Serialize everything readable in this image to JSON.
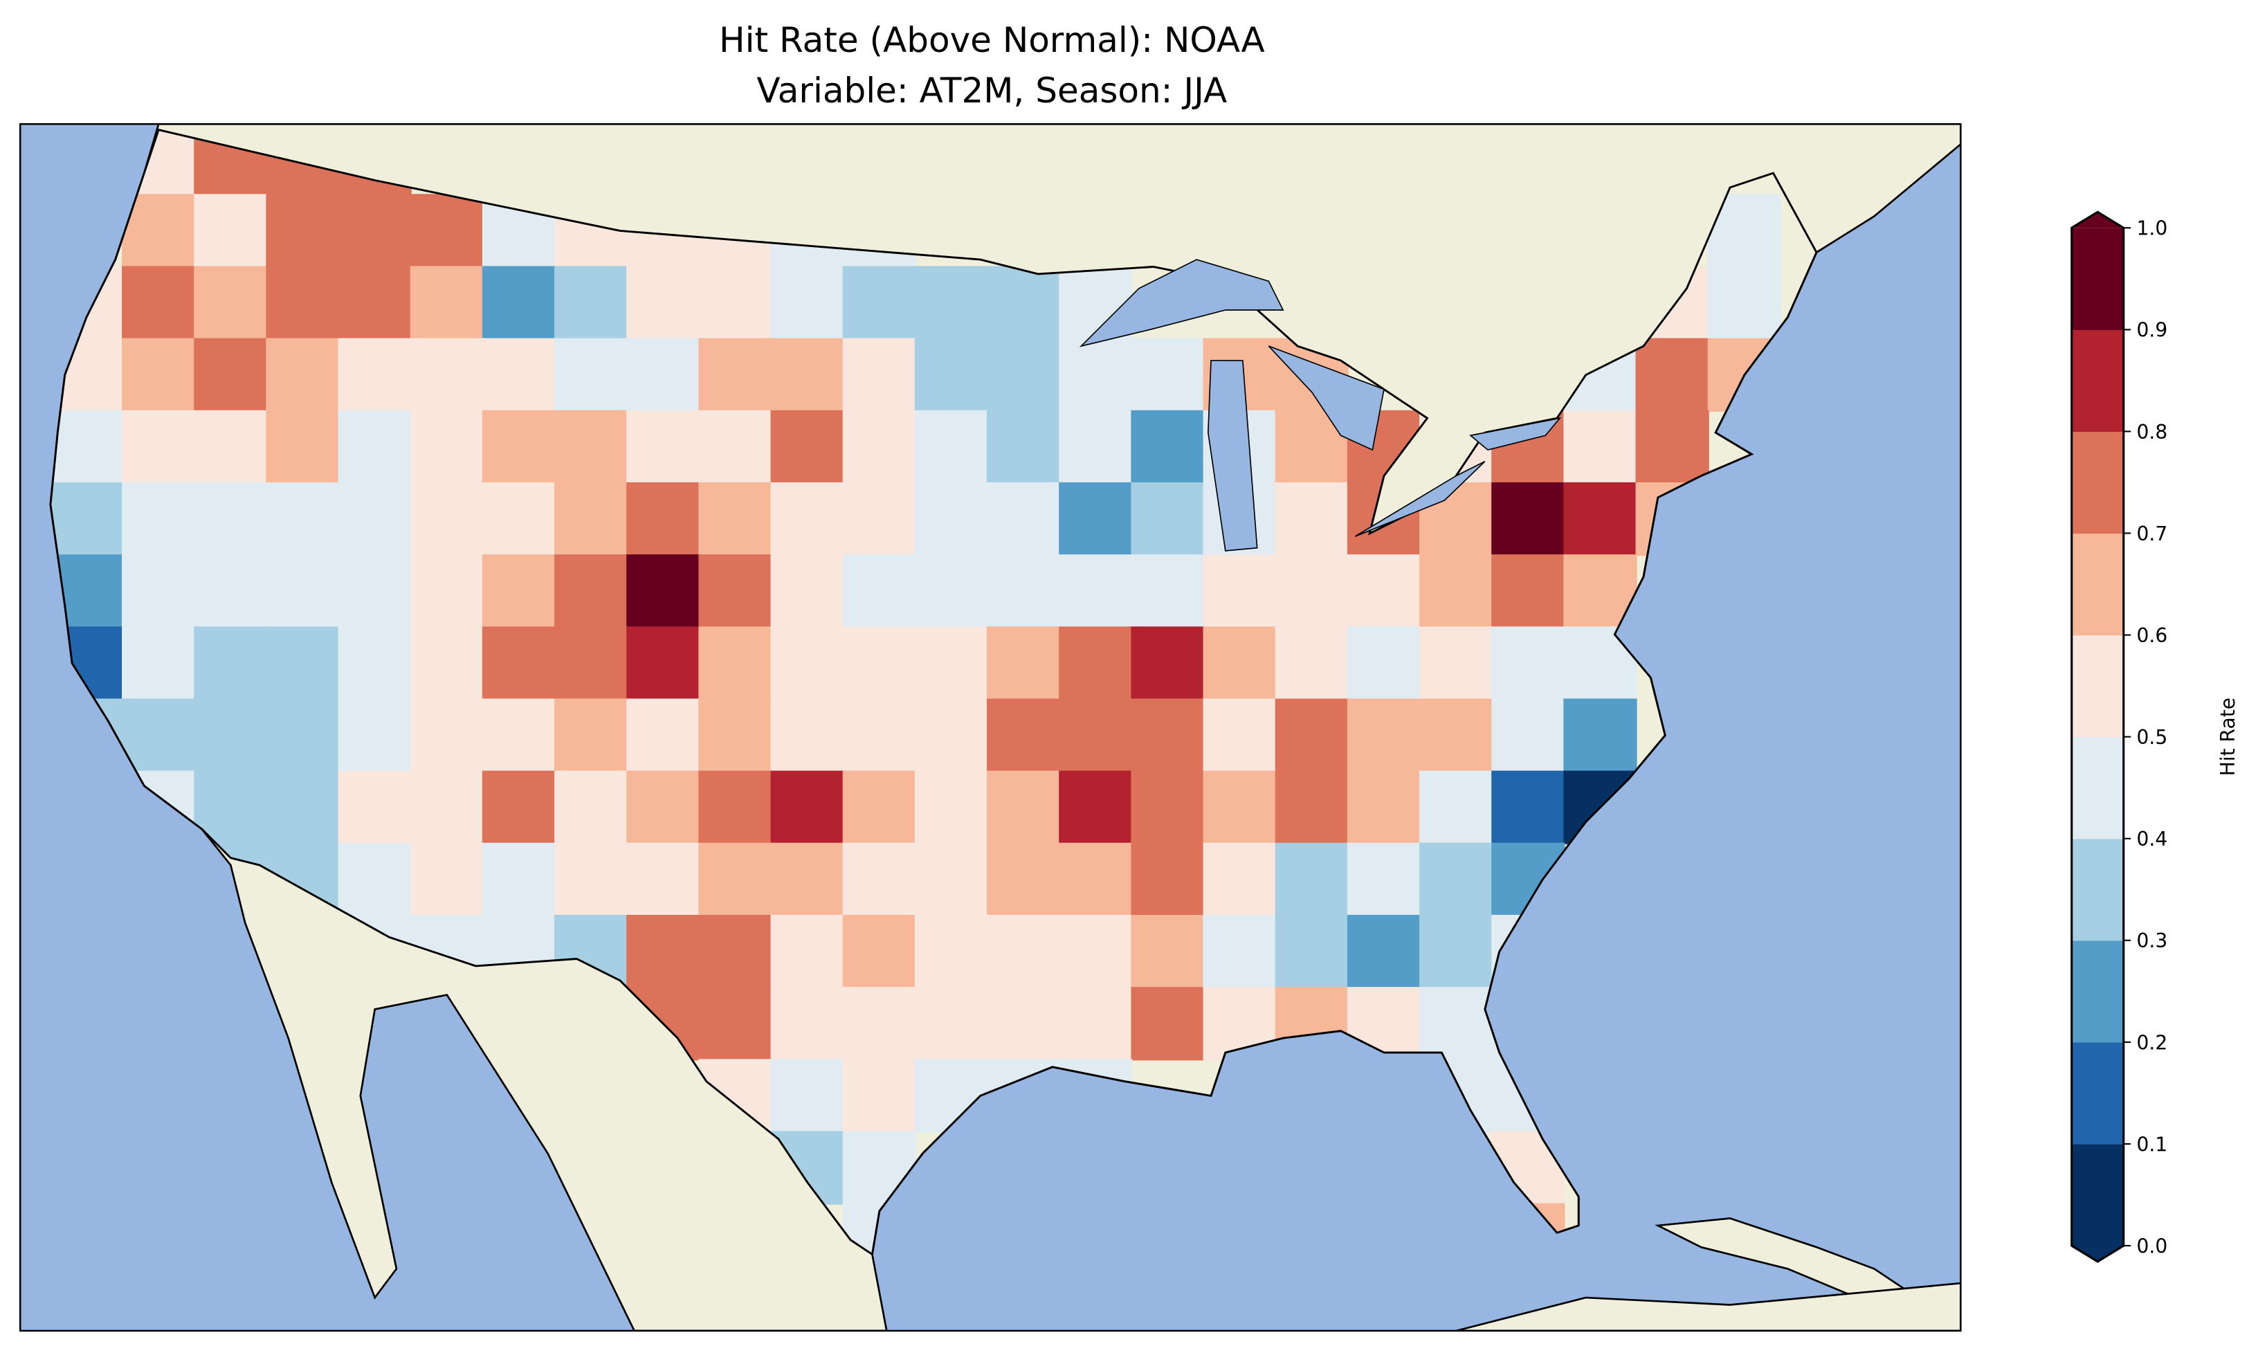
{
  "title": {
    "line1": "Hit Rate (Above Normal): NOAA",
    "line2": "Variable: AT2M, Season: JJA"
  },
  "colors": {
    "ocean": "#97b6e1",
    "land": "#efefdb",
    "bins": [
      "#053061",
      "#2166ac",
      "#539dc8",
      "#a6cfe3",
      "#e0ebf2",
      "#f9e6dd",
      "#f6b899",
      "#dd725a",
      "#b3222f",
      "#67001f"
    ]
  },
  "colorbar": {
    "label": "Hit Rate",
    "ticks": [
      "0.0",
      "0.1",
      "0.2",
      "0.3",
      "0.4",
      "0.5",
      "0.6",
      "0.7",
      "0.8",
      "0.9",
      "1.0"
    ],
    "min": 0.0,
    "max": 1.0,
    "extend": "both"
  },
  "chart_data": {
    "type": "heatmap",
    "title": "Hit Rate (Above Normal): NOAA / Variable: AT2M, Season: JJA",
    "variable": "AT2M",
    "season": "JJA",
    "value_range": [
      0,
      1
    ],
    "levels": [
      0,
      0.1,
      0.2,
      0.3,
      0.4,
      0.5,
      0.6,
      0.7,
      0.8,
      0.9,
      1.0
    ],
    "grid_note": "coarse approximation of the CONUS field, rows north to south, columns west to east; null = no data",
    "grid": [
      [
        null,
        0.55,
        0.75,
        0.75,
        0.75,
        null,
        null,
        null,
        null,
        null,
        null,
        null,
        null,
        null,
        null,
        null,
        null,
        null,
        null,
        null,
        null,
        null,
        null,
        null,
        null
      ],
      [
        null,
        0.65,
        0.55,
        0.75,
        0.75,
        0.7,
        0.45,
        0.55,
        0.55,
        0.55,
        0.45,
        0.45,
        null,
        null,
        null,
        null,
        null,
        null,
        null,
        null,
        null,
        null,
        null,
        0.45,
        null
      ],
      [
        0.55,
        0.75,
        0.6,
        0.7,
        0.75,
        0.65,
        0.25,
        0.35,
        0.55,
        0.55,
        0.45,
        0.35,
        0.35,
        0.3,
        0.45,
        null,
        null,
        null,
        null,
        null,
        null,
        null,
        0.55,
        0.4,
        null
      ],
      [
        0.55,
        0.65,
        0.7,
        0.6,
        0.55,
        0.55,
        0.5,
        0.45,
        0.45,
        0.65,
        0.6,
        0.5,
        0.35,
        0.3,
        0.45,
        0.45,
        0.65,
        0.6,
        null,
        null,
        null,
        0.45,
        0.7,
        0.6,
        null
      ],
      [
        0.45,
        0.5,
        0.5,
        0.6,
        0.45,
        0.5,
        0.6,
        0.65,
        0.55,
        0.55,
        0.75,
        0.5,
        0.4,
        0.35,
        0.45,
        0.25,
        0.45,
        0.6,
        0.7,
        0.55,
        0.75,
        0.55,
        0.7,
        null,
        null
      ],
      [
        0.3,
        0.4,
        0.45,
        0.45,
        0.45,
        0.5,
        0.55,
        0.65,
        0.7,
        0.6,
        0.55,
        0.5,
        0.45,
        0.4,
        0.25,
        0.35,
        0.45,
        0.55,
        0.75,
        0.65,
        0.95,
        0.85,
        0.6,
        null,
        null
      ],
      [
        0.25,
        0.45,
        0.45,
        0.45,
        0.45,
        0.55,
        0.65,
        0.75,
        0.9,
        0.75,
        0.55,
        0.45,
        0.4,
        0.45,
        0.45,
        0.45,
        0.55,
        0.55,
        0.55,
        0.6,
        0.75,
        0.65,
        null,
        null,
        null
      ],
      [
        0.15,
        0.45,
        0.3,
        0.35,
        0.45,
        0.55,
        0.75,
        0.75,
        0.85,
        0.6,
        0.55,
        0.5,
        0.55,
        0.6,
        0.75,
        0.85,
        0.65,
        0.55,
        0.45,
        0.55,
        0.45,
        0.4,
        null,
        null,
        null
      ],
      [
        0.35,
        0.35,
        0.35,
        0.3,
        0.45,
        0.55,
        0.55,
        0.6,
        0.55,
        0.6,
        0.55,
        0.55,
        0.55,
        0.7,
        0.75,
        0.7,
        0.55,
        0.7,
        0.65,
        0.6,
        0.45,
        0.25,
        null,
        null,
        null
      ],
      [
        null,
        0.4,
        0.35,
        0.3,
        0.5,
        0.55,
        0.75,
        0.5,
        0.6,
        0.7,
        0.85,
        0.65,
        0.55,
        0.65,
        0.85,
        0.7,
        0.65,
        0.75,
        0.6,
        0.45,
        0.15,
        0.05,
        null,
        null,
        null
      ],
      [
        null,
        null,
        0.35,
        0.35,
        0.45,
        0.5,
        0.4,
        0.5,
        0.55,
        0.65,
        0.6,
        0.55,
        0.55,
        0.65,
        0.65,
        0.75,
        0.5,
        0.35,
        0.45,
        0.3,
        0.25,
        null,
        null,
        null,
        null
      ],
      [
        null,
        null,
        null,
        null,
        0.4,
        0.4,
        0.4,
        0.3,
        0.7,
        0.7,
        0.55,
        0.6,
        0.55,
        0.55,
        0.55,
        0.6,
        0.45,
        0.35,
        0.25,
        0.3,
        0.45,
        null,
        null,
        null,
        null
      ],
      [
        null,
        null,
        null,
        null,
        null,
        null,
        null,
        null,
        0.7,
        0.7,
        0.55,
        0.55,
        0.55,
        0.5,
        0.5,
        0.7,
        0.5,
        0.6,
        0.55,
        0.45,
        0.45,
        null,
        null,
        null,
        null
      ],
      [
        null,
        null,
        null,
        null,
        null,
        null,
        null,
        null,
        null,
        0.55,
        0.45,
        0.5,
        0.45,
        0.45,
        0.45,
        null,
        null,
        null,
        null,
        0.45,
        0.45,
        null,
        null,
        null,
        null
      ],
      [
        null,
        null,
        null,
        null,
        null,
        null,
        null,
        null,
        null,
        null,
        0.3,
        0.45,
        null,
        null,
        null,
        null,
        null,
        null,
        null,
        null,
        0.55,
        null,
        null,
        null,
        null
      ],
      [
        null,
        null,
        null,
        null,
        null,
        null,
        null,
        null,
        null,
        null,
        null,
        0.45,
        null,
        null,
        null,
        null,
        null,
        null,
        null,
        null,
        0.65,
        null,
        null,
        null,
        null
      ]
    ]
  }
}
